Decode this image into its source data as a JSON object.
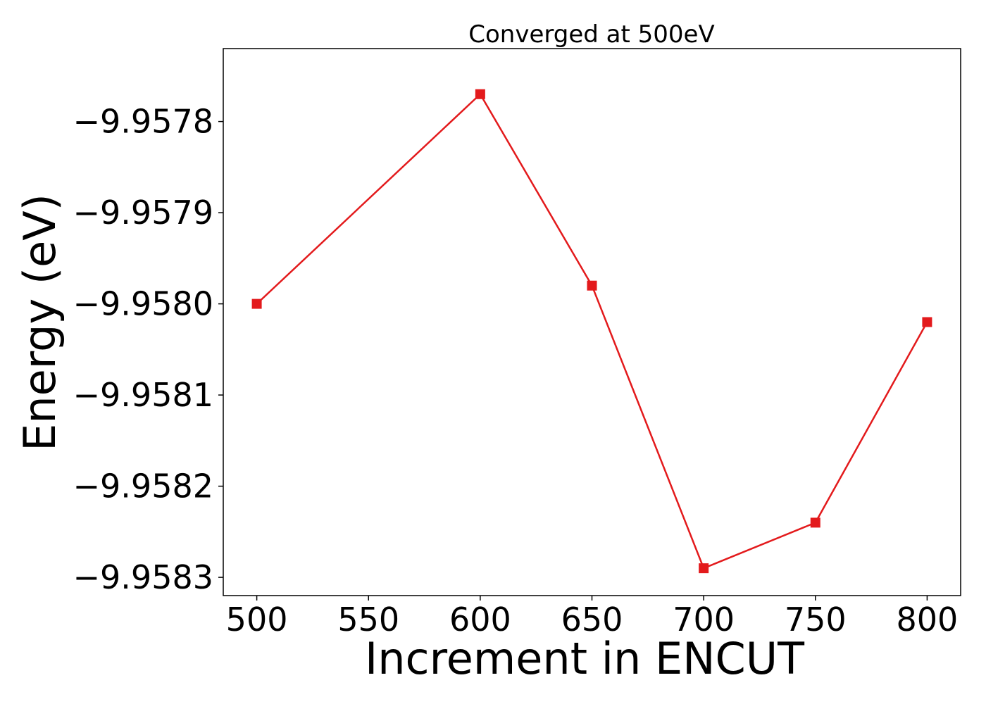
{
  "chart_data": {
    "type": "line",
    "title": "Converged at 500eV",
    "xlabel": "Increment in ENCUT",
    "ylabel": "Energy (eV)",
    "x": [
      500,
      600,
      650,
      700,
      750,
      800
    ],
    "series": [
      {
        "values": [
          -9.958,
          -9.95777,
          -9.95798,
          -9.95829,
          -9.95824,
          -9.95802
        ],
        "color": "#e31a1c",
        "marker": "square"
      }
    ],
    "xlim": [
      485,
      815
    ],
    "ylim": [
      -9.95832,
      -9.95772
    ],
    "xticks": [
      500,
      550,
      600,
      650,
      700,
      750,
      800
    ],
    "xtick_labels": [
      "500",
      "550",
      "600",
      "650",
      "700",
      "750",
      "800"
    ],
    "yticks": [
      -9.9578,
      -9.9579,
      -9.958,
      -9.9581,
      -9.9582,
      -9.9583
    ],
    "ytick_labels": [
      "−9.9578",
      "−9.9579",
      "−9.9580",
      "−9.9581",
      "−9.9582",
      "−9.9583"
    ],
    "grid": false,
    "legend": "none"
  }
}
